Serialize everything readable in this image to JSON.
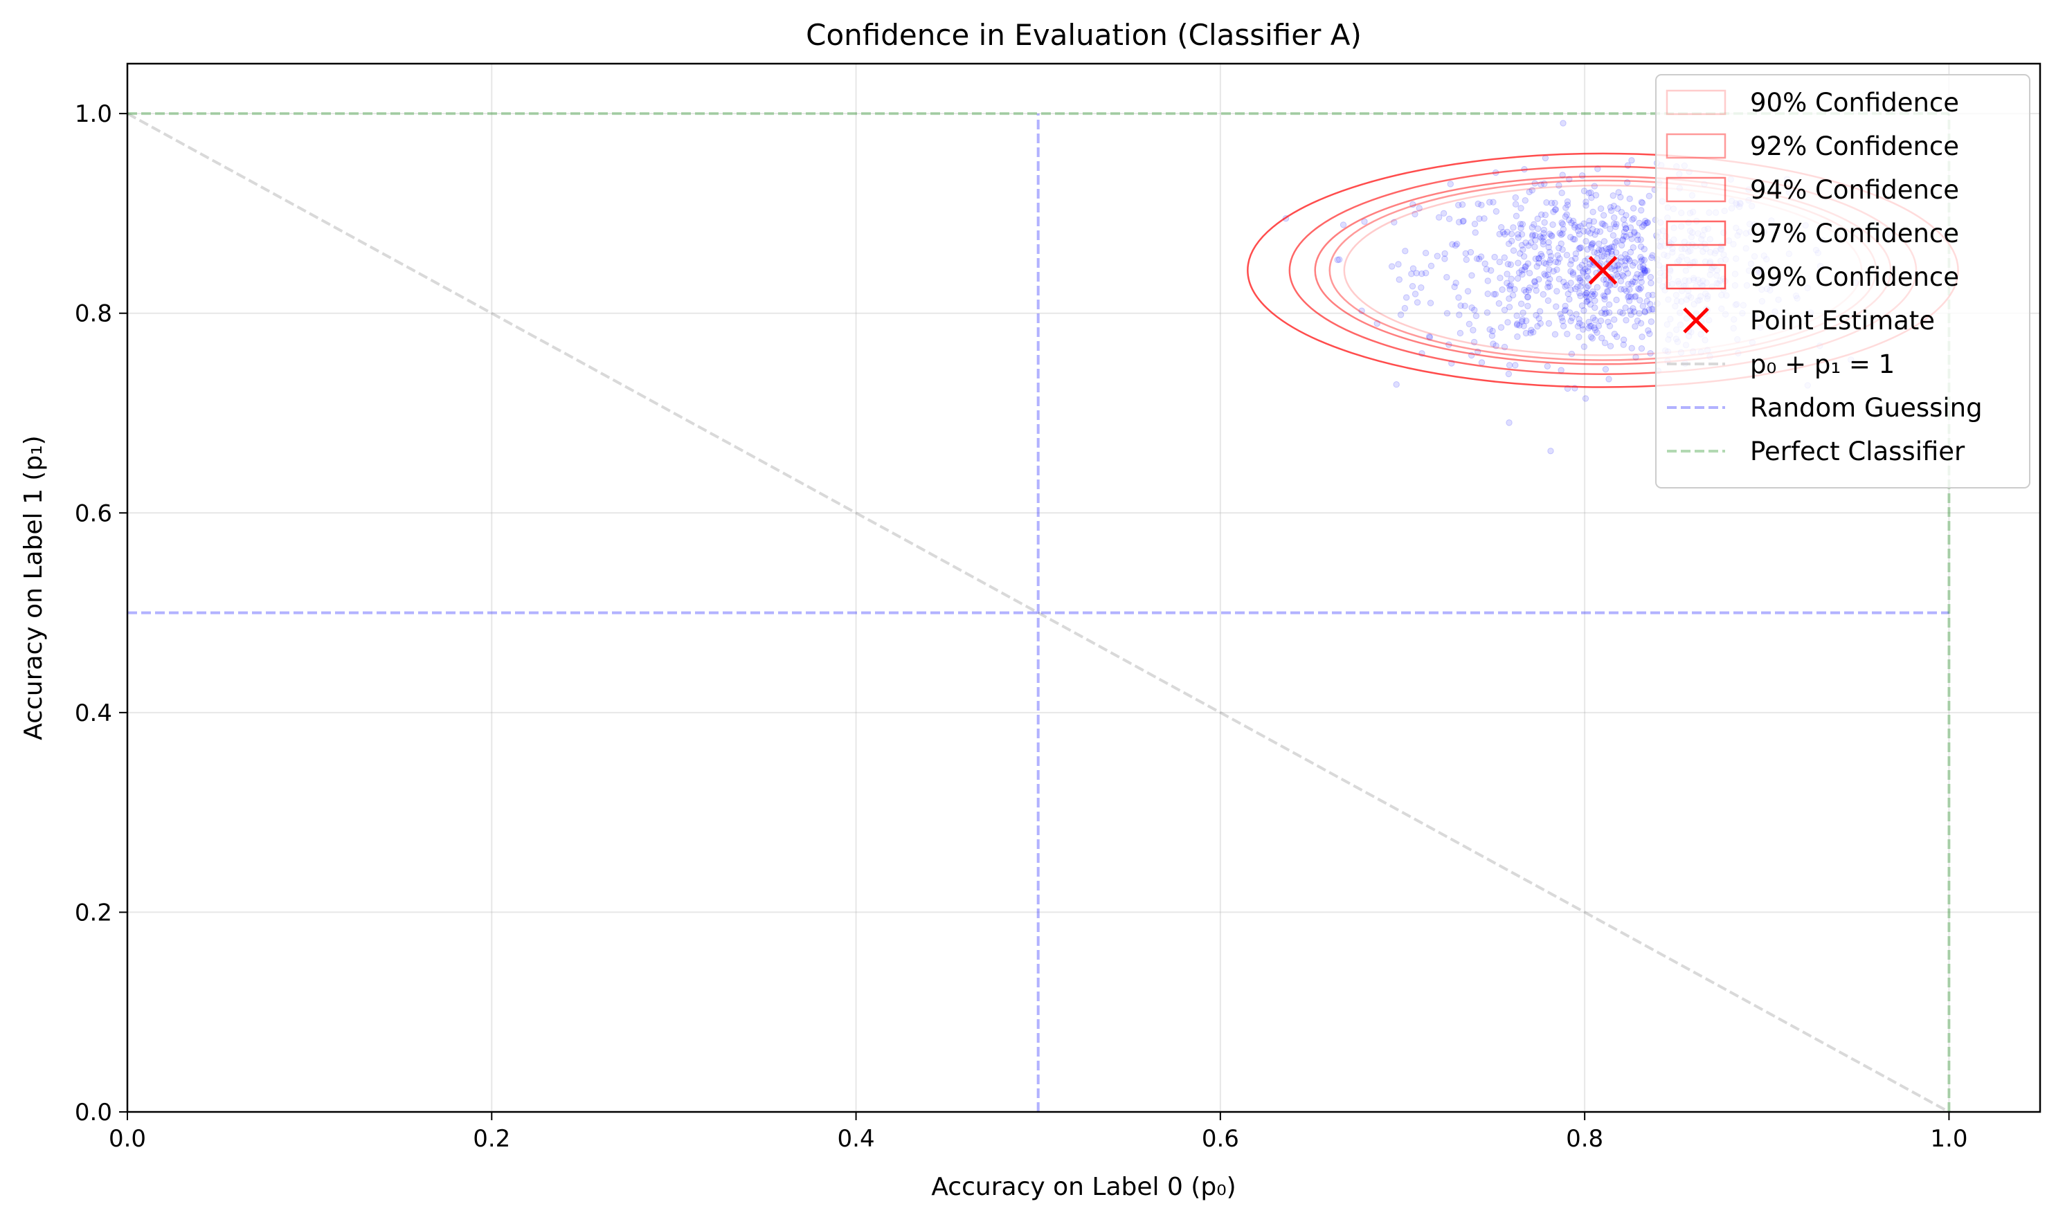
{
  "chart_data": {
    "type": "scatter",
    "title": "Confidence in Evaluation (Classifier A)",
    "xlabel": "Accuracy on Label 0 (p₀)",
    "ylabel": "Accuracy on Label 1 (p₁)",
    "xlim": [
      0.0,
      1.05
    ],
    "ylim": [
      0.0,
      1.05
    ],
    "x_ticks": [
      0.0,
      0.2,
      0.4,
      0.6,
      0.8,
      1.0
    ],
    "x_tick_labels": [
      "0.0",
      "0.2",
      "0.4",
      "0.6",
      "0.8",
      "1.0"
    ],
    "y_ticks": [
      0.0,
      0.2,
      0.4,
      0.6,
      0.8,
      1.0
    ],
    "y_tick_labels": [
      "0.0",
      "0.2",
      "0.4",
      "0.6",
      "0.8",
      "1.0"
    ],
    "grid": true,
    "legend_position": "upper right",
    "point_estimate": {
      "label": "Point Estimate",
      "x": 0.81,
      "y": 0.843,
      "color": "#ff0000",
      "marker": "x"
    },
    "samples": {
      "color": "#0000ff",
      "count": 900,
      "mean": [
        0.81,
        0.843
      ],
      "sd": [
        0.05,
        0.045
      ]
    },
    "confidence_regions": [
      {
        "label": "90% Confidence",
        "level": 0.9,
        "center": [
          0.81,
          0.843
        ],
        "rx": 0.142,
        "ry": 0.085,
        "opacity": 0.2
      },
      {
        "label": "92% Confidence",
        "level": 0.92,
        "center": [
          0.81,
          0.843
        ],
        "rx": 0.15,
        "ry": 0.09,
        "opacity": 0.4
      },
      {
        "label": "94% Confidence",
        "level": 0.94,
        "center": [
          0.81,
          0.843
        ],
        "rx": 0.158,
        "ry": 0.094,
        "opacity": 0.5
      },
      {
        "label": "97% Confidence",
        "level": 0.97,
        "center": [
          0.81,
          0.843
        ],
        "rx": 0.172,
        "ry": 0.104,
        "opacity": 0.6
      },
      {
        "label": "99% Confidence",
        "level": 0.99,
        "center": [
          0.81,
          0.843
        ],
        "rx": 0.195,
        "ry": 0.117,
        "opacity": 0.7
      }
    ],
    "ellipse_color": "#ff0000",
    "reference_lines": [
      {
        "label": "p₀ + p₁ = 1",
        "color": "#808080",
        "segments": [
          [
            [
              0.0,
              1.0
            ],
            [
              1.0,
              0.0
            ]
          ]
        ]
      },
      {
        "label": "Random Guessing",
        "color": "#0000ff",
        "segments": [
          [
            [
              0.0,
              0.5
            ],
            [
              1.0,
              0.5
            ]
          ],
          [
            [
              0.5,
              0.0
            ],
            [
              0.5,
              1.0
            ]
          ]
        ]
      },
      {
        "label": "Perfect Classifier",
        "color": "#008000",
        "segments": [
          [
            [
              0.0,
              1.0
            ],
            [
              1.0,
              1.0
            ]
          ],
          [
            [
              1.0,
              0.0
            ],
            [
              1.0,
              1.0
            ]
          ]
        ]
      }
    ]
  }
}
